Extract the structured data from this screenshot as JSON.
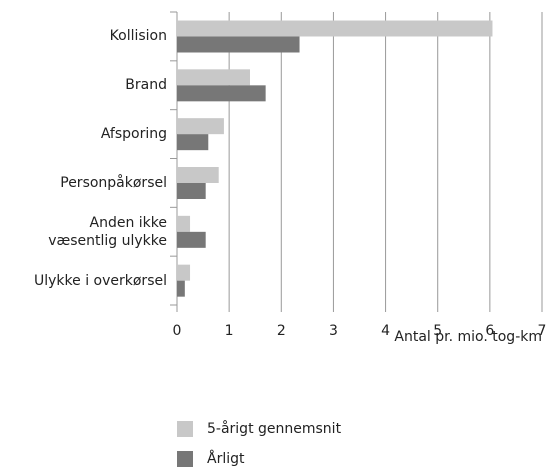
{
  "chart_data": {
    "type": "bar",
    "orientation": "horizontal",
    "categories": [
      "Kollision",
      "Brand",
      "Afsporing",
      "Personpåkørsel",
      "Anden ikke\nvæsentlig ulykke",
      "Ulykke i overkørsel"
    ],
    "series": [
      {
        "name": "5-årigt gennemsnit",
        "color": "#c8c8c8",
        "values": [
          6.05,
          1.4,
          0.9,
          0.8,
          0.25,
          0.25
        ]
      },
      {
        "name": "Årligt",
        "color": "#777777",
        "values": [
          2.35,
          1.7,
          0.6,
          0.55,
          0.55,
          0.15
        ]
      }
    ],
    "x_label": "Antal pr. mio. tog-km",
    "xlim": [
      0,
      7
    ],
    "xticks": [
      0,
      1,
      2,
      3,
      4,
      5,
      6,
      7
    ],
    "grid": true
  }
}
